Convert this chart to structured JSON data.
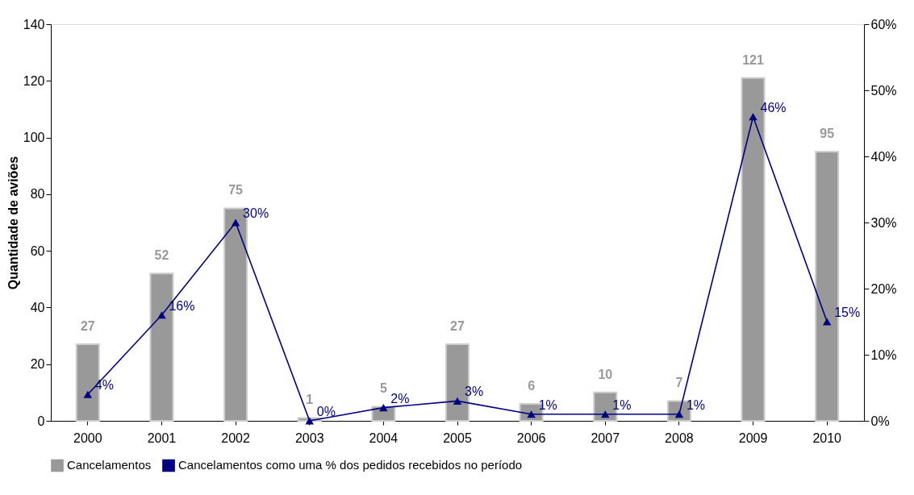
{
  "chart_data": {
    "type": "bar",
    "ylabel": "Quantidade de aviões",
    "categories": [
      "2000",
      "2001",
      "2002",
      "2003",
      "2004",
      "2005",
      "2006",
      "2007",
      "2008",
      "2009",
      "2010"
    ],
    "series": [
      {
        "name": "Cancelamentos",
        "color": "#999999",
        "values": [
          27,
          52,
          75,
          1,
          5,
          27,
          6,
          10,
          7,
          121,
          95
        ],
        "value_labels": [
          "27",
          "52",
          "75",
          "1",
          "5",
          "27",
          "6",
          "10",
          "7",
          "121",
          "95"
        ]
      },
      {
        "name": "Cancelamentos como uma % dos pedidos recebidos no período",
        "type": "line",
        "axis": "y2",
        "color": "#000080",
        "marker": "triangle",
        "values": [
          4,
          16,
          30,
          0,
          2,
          3,
          1,
          1,
          1,
          46,
          15
        ],
        "value_labels": [
          "4%",
          "16%",
          "30%",
          "0%",
          "2%",
          "3%",
          "1%",
          "1%",
          "1%",
          "46%",
          "15%"
        ]
      }
    ],
    "ylim": [
      0,
      140
    ],
    "yticks": [
      0,
      20,
      40,
      60,
      80,
      100,
      120,
      140
    ],
    "y2lim": [
      0,
      60
    ],
    "y2ticks": [
      {
        "value": 0,
        "label": "0%"
      },
      {
        "value": 10,
        "label": "10%"
      },
      {
        "value": 20,
        "label": "20%"
      },
      {
        "value": 30,
        "label": "30%"
      },
      {
        "value": 40,
        "label": "40%"
      },
      {
        "value": 50,
        "label": "50%"
      },
      {
        "value": 60,
        "label": "60%"
      }
    ],
    "legend": "bottom",
    "grid": false
  }
}
